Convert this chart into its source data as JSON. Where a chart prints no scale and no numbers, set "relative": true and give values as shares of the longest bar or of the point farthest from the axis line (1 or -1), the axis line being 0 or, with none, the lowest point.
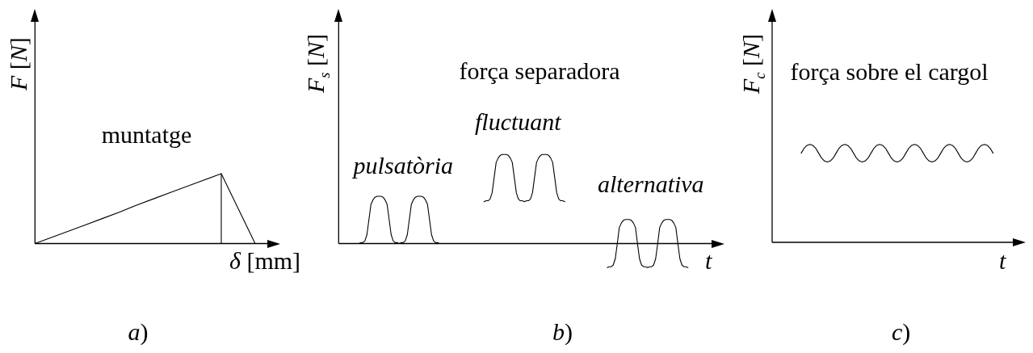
{
  "chart_data": [
    {
      "type": "line",
      "title": "muntatge",
      "xlabel": "δ [mm]",
      "ylabel": "F [N]",
      "annotations": [
        "a)"
      ],
      "relative": true,
      "marker": "none",
      "tick_labels": false,
      "categories": [
        null,
        null,
        null,
        null,
        null,
        null,
        null,
        null,
        null,
        null,
        null,
        null,
        null,
        null,
        null
      ],
      "series": [
        {
          "type": "line",
          "color": "#000000",
          "values": [
            0,
            0.09,
            0.18,
            0.27,
            0.36,
            0.45,
            0.55,
            0.64,
            0.73,
            0.82,
            0.91,
            1,
            0.5,
            0,
            null
          ]
        },
        {
          "type": "step",
          "color": "#000000",
          "values": [
            null,
            null,
            null,
            null,
            null,
            null,
            null,
            null,
            null,
            null,
            null,
            1,
            0,
            null,
            null
          ]
        }
      ]
    },
    {
      "type": "line",
      "title": "força separadora",
      "xlabel": "t",
      "ylabel": "F$_{s}$ [N]",
      "annotations": [
        "b)"
      ],
      "relative": true,
      "marker": "none",
      "tick_labels": false,
      "categories": [
        null,
        null,
        null,
        null,
        null,
        null,
        null,
        null,
        null,
        null,
        null,
        null,
        null,
        null,
        null,
        null,
        null,
        null,
        null,
        null,
        null,
        null,
        null,
        null,
        null,
        null,
        null,
        null,
        null,
        null,
        null,
        null,
        null,
        null,
        null,
        null,
        null,
        null,
        null,
        null,
        null,
        null,
        null,
        null,
        null,
        null,
        null,
        null,
        null,
        null,
        null,
        null,
        null,
        null,
        null,
        null,
        null,
        null,
        null,
        null,
        null,
        null,
        null,
        null,
        null,
        null,
        null,
        null,
        null,
        null,
        null,
        null,
        null,
        null,
        null,
        null,
        null,
        null,
        null,
        null,
        null,
        null,
        null,
        null,
        null,
        null,
        null,
        null,
        null,
        null,
        null,
        null,
        null,
        null,
        null,
        null,
        null,
        null,
        null,
        null,
        null,
        null,
        null,
        null,
        null,
        null,
        null,
        null,
        null,
        null,
        null,
        null,
        null,
        null,
        null,
        null,
        null,
        null,
        null,
        null,
        null,
        null,
        null,
        null,
        null,
        null,
        null,
        null,
        null,
        null,
        null,
        null,
        null,
        null,
        null,
        null,
        null,
        null,
        null,
        null,
        null,
        null,
        null,
        null,
        null,
        null,
        null,
        null,
        null,
        null,
        null,
        null,
        null,
        null,
        null,
        null,
        null,
        null,
        null,
        null,
        null,
        null,
        null,
        null,
        null,
        null,
        null,
        null,
        null,
        null,
        null,
        null,
        null,
        null,
        null,
        null,
        null,
        null,
        null,
        null,
        null,
        null,
        null,
        null,
        null,
        null
      ],
      "series": [
        {
          "name": "pulsatòria",
          "color": "#000000",
          "values": [
            null,
            null,
            null,
            null,
            null,
            null,
            null,
            null,
            null,
            null,
            0,
            0.01,
            0.01,
            0.03,
            0.1,
            0.27,
            0.44,
            0.49,
            0.52,
            0.53,
            0.53,
            0.53,
            0.52,
            0.49,
            0.44,
            0.27,
            0.1,
            0.03,
            0.01,
            0.01,
            0,
            0.01,
            0.01,
            0.03,
            0.1,
            0.27,
            0.44,
            0.49,
            0.52,
            0.53,
            0.53,
            0.53,
            0.52,
            0.49,
            0.44,
            0.27,
            0.1,
            0.03,
            0.01,
            0.01,
            0,
            null,
            null,
            null,
            null,
            null,
            null,
            null,
            null,
            null,
            null,
            null,
            null,
            null,
            null,
            null,
            null,
            null,
            null,
            null,
            null,
            null,
            null,
            null,
            null,
            null,
            null,
            null,
            null,
            null,
            null,
            null,
            null,
            null,
            null,
            null,
            null,
            null,
            null,
            null,
            null,
            null,
            null,
            null,
            null,
            null,
            null,
            null,
            null,
            null,
            null,
            null,
            null,
            null,
            null,
            null,
            null,
            null,
            null,
            null,
            null,
            null,
            null,
            null,
            null,
            null,
            null,
            null,
            null,
            null,
            null,
            null,
            null,
            null,
            null,
            null,
            null,
            null,
            null,
            null,
            null,
            null,
            null,
            null,
            null,
            null,
            null,
            null,
            null,
            null,
            null,
            null,
            null,
            null,
            null,
            null,
            null,
            null,
            null,
            null,
            null,
            null,
            null,
            null,
            null,
            null,
            null,
            null,
            null,
            null,
            null,
            null,
            null,
            null,
            null,
            null,
            null,
            null,
            null,
            null,
            null,
            null,
            null,
            null,
            null,
            null,
            null,
            null,
            null,
            null,
            null,
            null,
            null,
            null,
            null,
            null
          ]
        },
        {
          "name": "fluctuant",
          "color": "#000000",
          "values": [
            null,
            null,
            null,
            null,
            null,
            null,
            null,
            null,
            null,
            null,
            null,
            null,
            null,
            null,
            null,
            null,
            null,
            null,
            null,
            null,
            null,
            null,
            null,
            null,
            null,
            null,
            null,
            null,
            null,
            null,
            null,
            null,
            null,
            null,
            null,
            null,
            null,
            null,
            null,
            null,
            null,
            null,
            null,
            null,
            null,
            null,
            null,
            null,
            null,
            null,
            null,
            null,
            null,
            null,
            null,
            null,
            null,
            null,
            null,
            null,
            null,
            null,
            null,
            null,
            null,
            null,
            null,
            null,
            null,
            null,
            null,
            null,
            0.47,
            0.48,
            0.48,
            0.5,
            0.57,
            0.74,
            0.91,
            0.96,
            0.99,
            1,
            1,
            1,
            0.99,
            0.96,
            0.91,
            0.74,
            0.57,
            0.5,
            0.48,
            0.48,
            0.47,
            0.48,
            0.48,
            0.5,
            0.57,
            0.74,
            0.91,
            0.96,
            0.99,
            1,
            1,
            1,
            0.99,
            0.96,
            0.91,
            0.74,
            0.57,
            0.5,
            0.48,
            0.48,
            0.47,
            null,
            null,
            null,
            null,
            null,
            null,
            null,
            null,
            null,
            null,
            null,
            null,
            null,
            null,
            null,
            null,
            null,
            null,
            null,
            null,
            null,
            null,
            null,
            null,
            null,
            null,
            null,
            null,
            null,
            null,
            null,
            null,
            null,
            null,
            null,
            null,
            null,
            null,
            null,
            null,
            null,
            null,
            null,
            null,
            null,
            null,
            null,
            null,
            null,
            null,
            null,
            null,
            null,
            null,
            null,
            null,
            null,
            null,
            null,
            null,
            null,
            null,
            null,
            null,
            null,
            null,
            null,
            null,
            null,
            null,
            null,
            null,
            null
          ]
        },
        {
          "name": "alternativa",
          "color": "#000000",
          "values": [
            null,
            null,
            null,
            null,
            null,
            null,
            null,
            null,
            null,
            null,
            null,
            null,
            null,
            null,
            null,
            null,
            null,
            null,
            null,
            null,
            null,
            null,
            null,
            null,
            null,
            null,
            null,
            null,
            null,
            null,
            null,
            null,
            null,
            null,
            null,
            null,
            null,
            null,
            null,
            null,
            null,
            null,
            null,
            null,
            null,
            null,
            null,
            null,
            null,
            null,
            null,
            null,
            null,
            null,
            null,
            null,
            null,
            null,
            null,
            null,
            null,
            null,
            null,
            null,
            null,
            null,
            null,
            null,
            null,
            null,
            null,
            null,
            null,
            null,
            null,
            null,
            null,
            null,
            null,
            null,
            null,
            null,
            null,
            null,
            null,
            null,
            null,
            null,
            null,
            null,
            null,
            null,
            null,
            null,
            null,
            null,
            null,
            null,
            null,
            null,
            null,
            null,
            null,
            null,
            null,
            null,
            null,
            null,
            null,
            null,
            null,
            null,
            null,
            null,
            null,
            null,
            null,
            null,
            null,
            null,
            null,
            null,
            null,
            null,
            null,
            null,
            null,
            null,
            null,
            null,
            null,
            null,
            null,
            -0.27,
            -0.26,
            -0.26,
            -0.24,
            -0.17,
            0,
            0.18,
            0.23,
            0.26,
            0.27,
            0.27,
            0.27,
            0.26,
            0.23,
            0.18,
            0,
            -0.17,
            -0.24,
            -0.26,
            -0.26,
            -0.27,
            -0.26,
            -0.26,
            -0.24,
            -0.17,
            0,
            0.18,
            0.23,
            0.26,
            0.27,
            0.27,
            0.27,
            0.26,
            0.23,
            0.18,
            0,
            -0.17,
            -0.24,
            -0.26,
            -0.26,
            -0.27,
            null,
            null,
            null,
            null,
            null,
            null,
            null,
            null,
            null,
            null,
            null,
            null
          ]
        }
      ]
    },
    {
      "type": "line",
      "title": "força sobre el cargol",
      "xlabel": "t",
      "ylabel": "F$_{c}$ [N]",
      "annotations": [
        "c)"
      ],
      "relative": true,
      "marker": "none",
      "tick_labels": false,
      "categories": [
        null,
        null,
        null,
        null,
        null,
        null,
        null,
        null,
        null,
        null,
        null,
        null,
        null,
        null,
        null,
        null,
        null,
        null,
        null,
        null,
        null,
        null,
        null,
        null,
        null,
        null,
        null,
        null,
        null,
        null,
        null,
        null,
        null,
        null,
        null,
        null,
        null,
        null,
        null,
        null,
        null,
        null,
        null,
        null,
        null,
        null,
        null,
        null,
        null,
        null,
        null,
        null,
        null,
        null,
        null,
        null,
        null,
        null,
        null,
        null,
        null,
        null,
        null,
        null,
        null,
        null,
        null,
        null,
        null,
        null,
        null,
        null,
        null,
        null,
        null,
        null,
        null,
        null,
        null,
        null,
        null,
        null,
        null,
        null,
        null
      ],
      "series": [
        {
          "color": "#000000",
          "values": [
            null,
            null,
            null,
            null,
            null,
            null,
            null,
            null,
            null,
            null,
            0.91,
            0.96,
            0.99,
            1,
            0.99,
            0.96,
            0.91,
            0.86,
            0.83,
            0.82,
            0.83,
            0.86,
            0.91,
            0.96,
            0.99,
            1,
            0.99,
            0.96,
            0.91,
            0.86,
            0.83,
            0.82,
            0.83,
            0.86,
            0.91,
            0.96,
            0.99,
            1,
            0.99,
            0.96,
            0.91,
            0.86,
            0.83,
            0.82,
            0.83,
            0.86,
            0.91,
            0.96,
            0.99,
            1,
            0.99,
            0.96,
            0.91,
            0.86,
            0.83,
            0.82,
            0.83,
            0.86,
            0.91,
            0.96,
            0.99,
            1,
            0.99,
            0.96,
            0.91,
            0.86,
            0.83,
            0.82,
            0.83,
            0.86,
            0.91,
            0.96,
            0.99,
            1,
            0.99,
            0.96,
            0.91,
            null,
            null,
            null,
            null,
            null,
            null,
            null,
            null
          ]
        }
      ]
    }
  ]
}
